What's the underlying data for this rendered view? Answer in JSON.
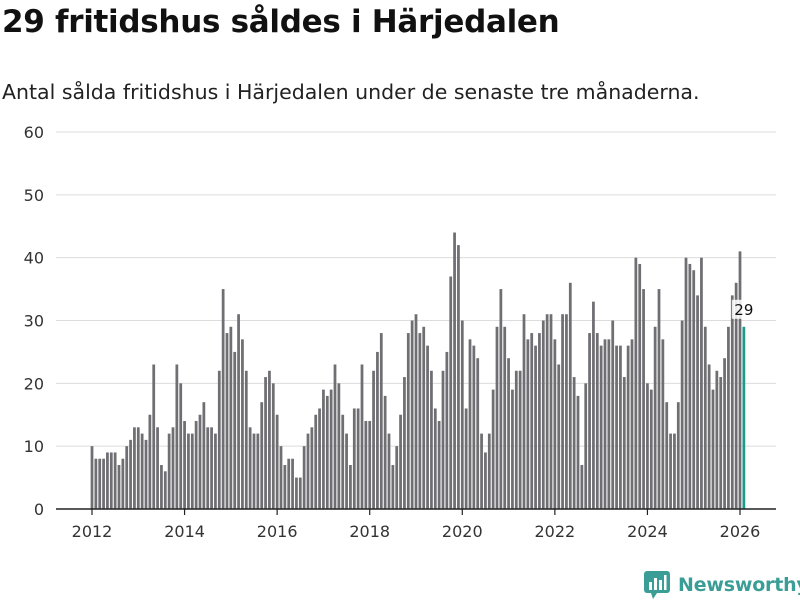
{
  "header": {
    "title": "29 fritidshus såldes i Härjedalen",
    "subtitle": "Antal sålda fritidshus i Härjedalen under de senaste tre månaderna."
  },
  "brand": {
    "name": "Newsworthy",
    "icon": "bar-chart-badge-icon"
  },
  "colors": {
    "bar": "#6f6e73",
    "highlight": "#1f9a8a",
    "grid": "#dcdcdc",
    "brand": "#3a9e96"
  },
  "chart_data": {
    "type": "bar",
    "title": "29 fritidshus såldes i Härjedalen",
    "xlabel": "",
    "ylabel": "",
    "ylim": [
      0,
      60
    ],
    "yticks": [
      0,
      10,
      20,
      30,
      40,
      50,
      60
    ],
    "xticks": [
      2012,
      2014,
      2016,
      2018,
      2020,
      2022,
      2024,
      2026
    ],
    "start": "2012-01",
    "values": [
      10,
      8,
      8,
      8,
      9,
      9,
      9,
      7,
      8,
      10,
      11,
      13,
      13,
      12,
      11,
      15,
      23,
      13,
      7,
      6,
      12,
      13,
      23,
      20,
      14,
      12,
      12,
      14,
      15,
      17,
      13,
      13,
      12,
      22,
      35,
      28,
      29,
      25,
      31,
      27,
      22,
      13,
      12,
      12,
      17,
      21,
      22,
      20,
      15,
      10,
      7,
      8,
      8,
      5,
      5,
      10,
      12,
      13,
      15,
      16,
      19,
      18,
      19,
      23,
      20,
      15,
      12,
      7,
      16,
      16,
      23,
      14,
      14,
      22,
      25,
      28,
      18,
      12,
      7,
      10,
      15,
      21,
      28,
      30,
      31,
      28,
      29,
      26,
      22,
      16,
      14,
      22,
      25,
      37,
      44,
      42,
      30,
      16,
      27,
      26,
      24,
      12,
      9,
      12,
      19,
      29,
      35,
      29,
      24,
      19,
      22,
      22,
      31,
      27,
      28,
      26,
      28,
      30,
      31,
      31,
      27,
      23,
      31,
      31,
      36,
      21,
      18,
      7,
      20,
      28,
      33,
      28,
      26,
      27,
      27,
      30,
      26,
      26,
      21,
      26,
      27,
      40,
      39,
      35,
      20,
      19,
      29,
      35,
      27,
      17,
      12,
      12,
      17,
      30,
      40,
      39,
      38,
      34,
      40,
      29,
      23,
      19,
      22,
      21,
      24,
      29,
      34,
      36,
      41,
      29
    ],
    "annotation": {
      "label": "29",
      "index": 169
    }
  }
}
